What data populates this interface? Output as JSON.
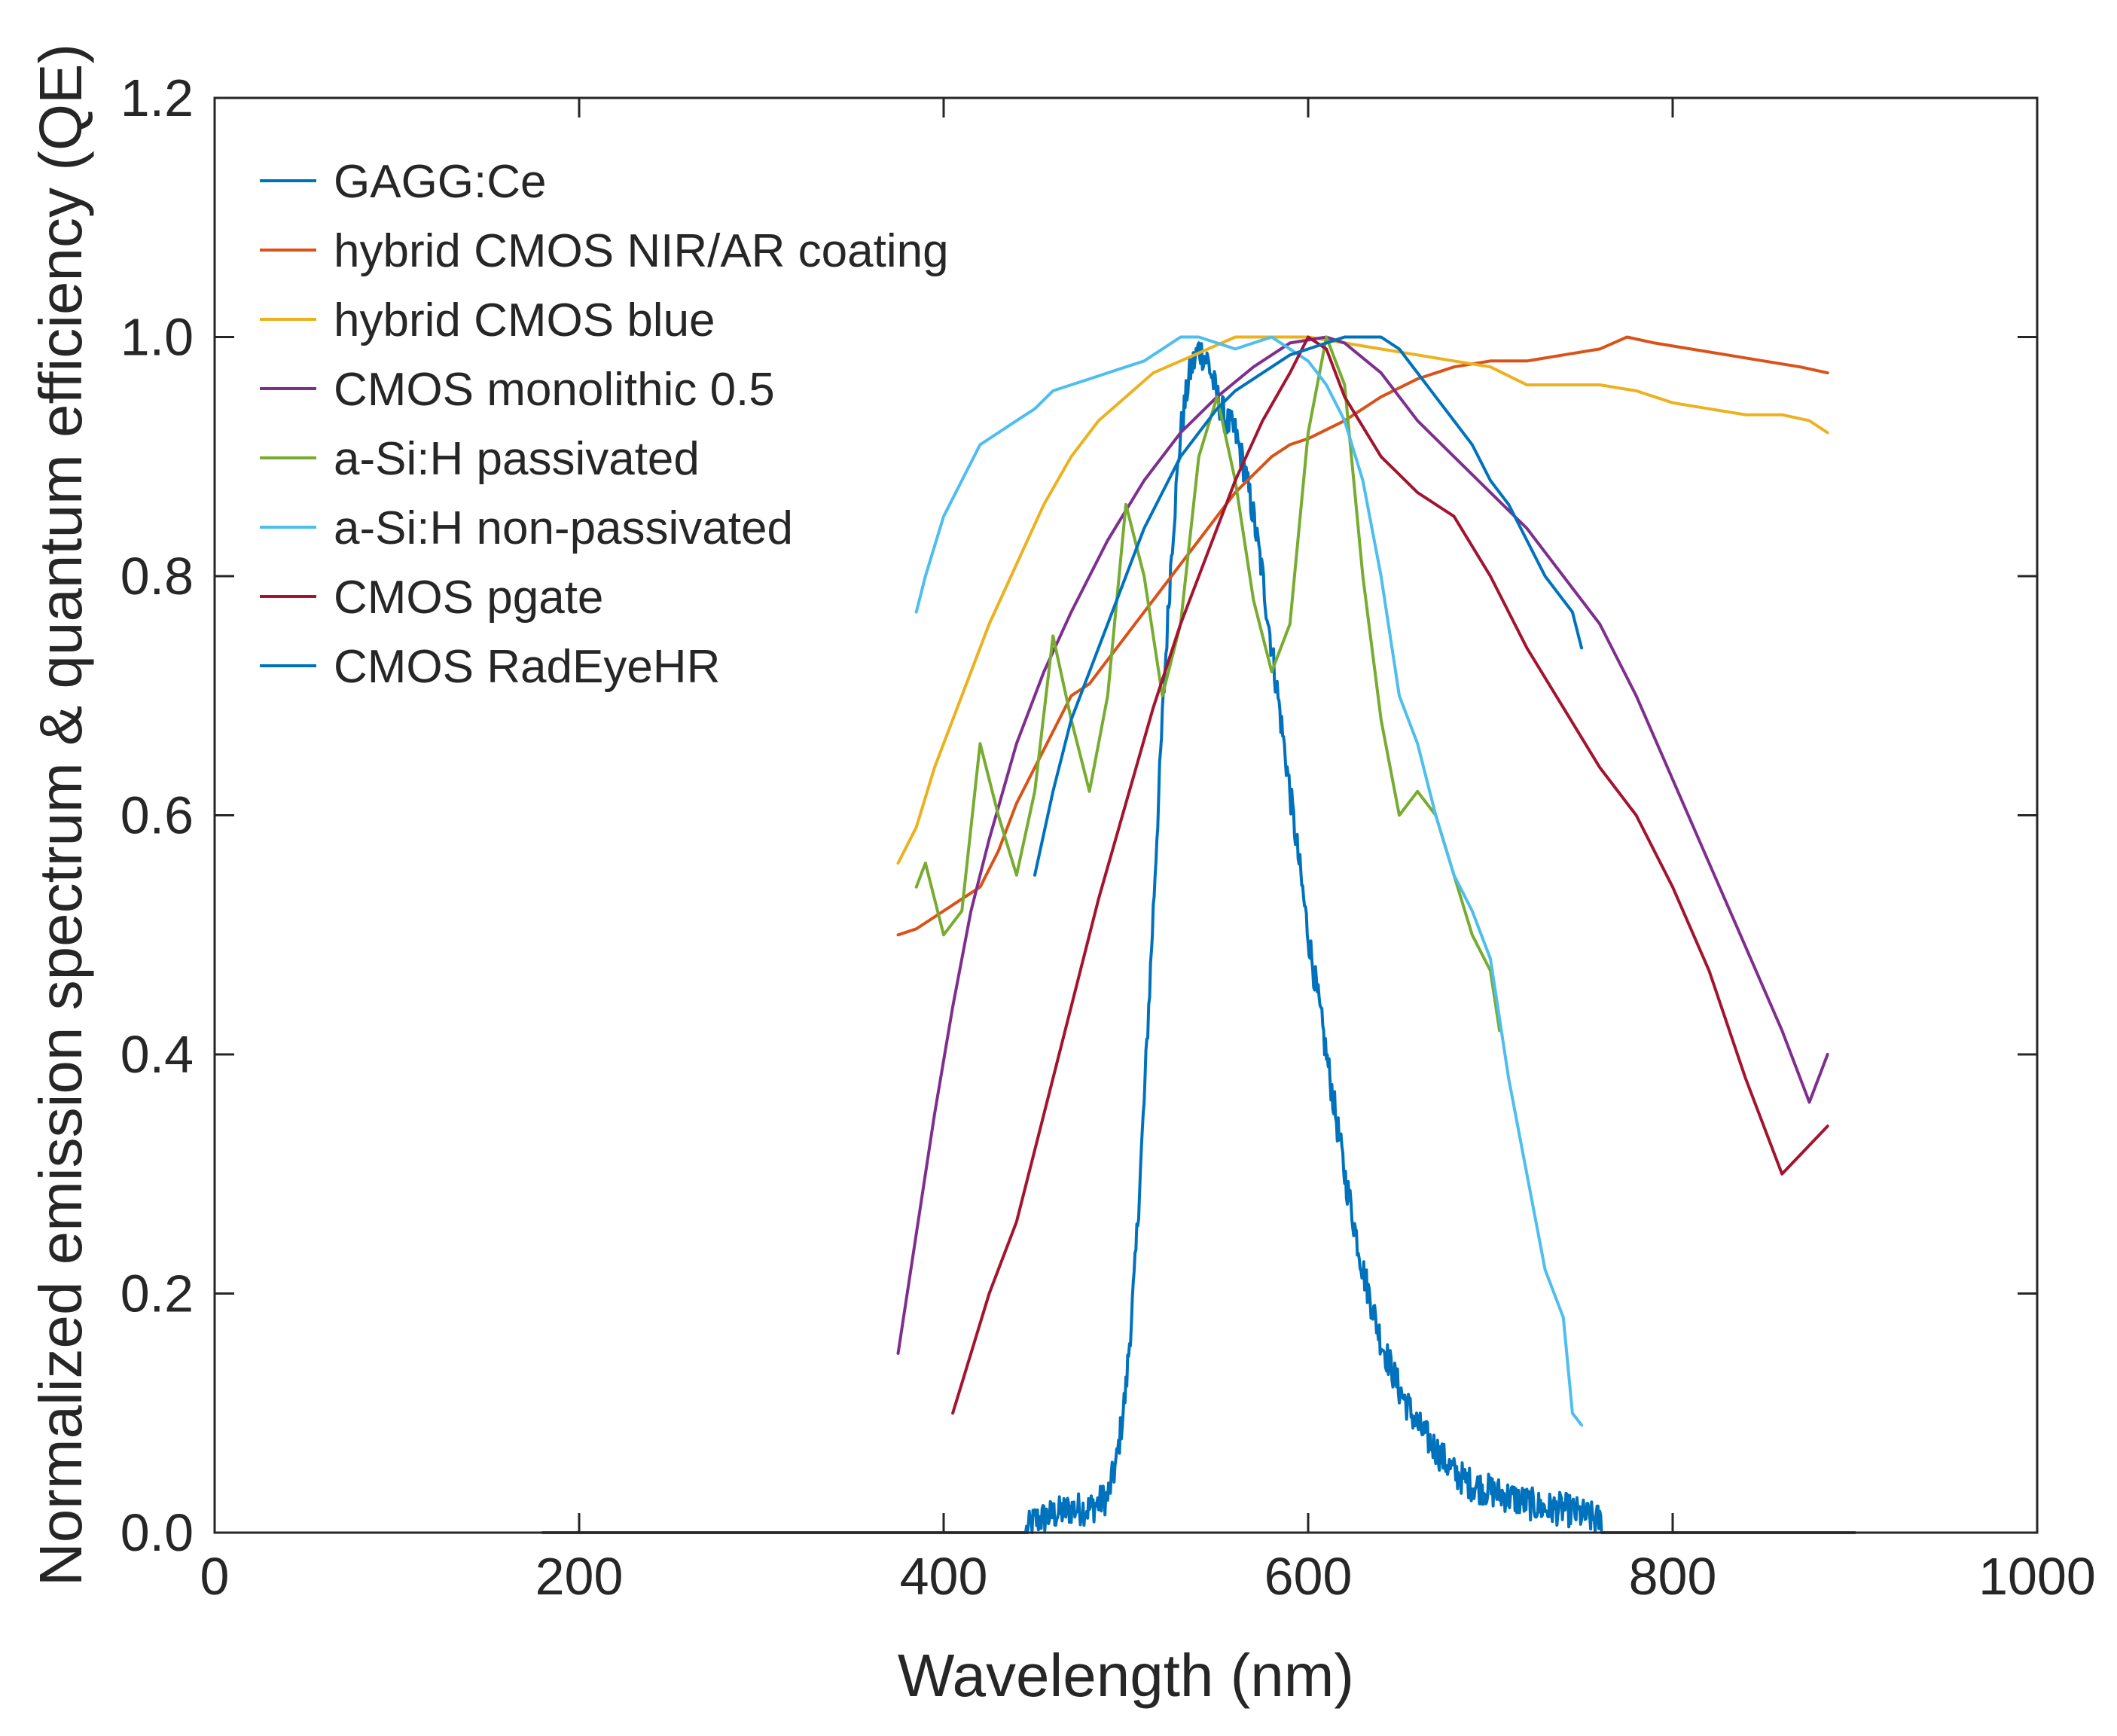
{
  "chart_data": {
    "type": "line",
    "title": "",
    "xlabel": "Wavelength (nm)",
    "ylabel": "Normalized emission spectrum & quantum efficiency (QE)",
    "xlim": [
      0,
      1000
    ],
    "ylim": [
      0,
      1.2
    ],
    "xticks": [
      0,
      200,
      400,
      600,
      800,
      1000
    ],
    "xtick_labels": [
      "0",
      "200",
      "400",
      "600",
      "800",
      "1000"
    ],
    "yticks": [
      0,
      0.2,
      0.4,
      0.6,
      0.8,
      1.0,
      1.2
    ],
    "ytick_labels": [
      "0.0",
      "0.2",
      "0.4",
      "0.6",
      "0.8",
      "1.0",
      "1.2"
    ],
    "grid": false,
    "legend_position": "top-left",
    "series": [
      {
        "name": "GAGG:Ce",
        "color": "#0072BD",
        "noisy": true,
        "x": [
          180,
          445,
          450,
          460,
          470,
          480,
          490,
          495,
          500,
          505,
          510,
          515,
          520,
          525,
          530,
          535,
          540,
          545,
          550,
          555,
          560,
          565,
          570,
          575,
          580,
          585,
          590,
          595,
          600,
          605,
          610,
          615,
          620,
          625,
          630,
          640,
          650,
          660,
          670,
          680,
          690,
          700,
          710,
          720,
          730,
          740,
          750,
          760,
          762,
          900
        ],
        "y": [
          0.0,
          0.0,
          0.01,
          0.015,
          0.02,
          0.02,
          0.03,
          0.06,
          0.12,
          0.22,
          0.36,
          0.52,
          0.68,
          0.82,
          0.92,
          0.97,
          0.99,
          0.98,
          0.95,
          0.93,
          0.92,
          0.89,
          0.85,
          0.8,
          0.74,
          0.68,
          0.62,
          0.56,
          0.5,
          0.45,
          0.4,
          0.35,
          0.3,
          0.26,
          0.22,
          0.16,
          0.12,
          0.09,
          0.07,
          0.05,
          0.04,
          0.035,
          0.03,
          0.025,
          0.02,
          0.02,
          0.015,
          0.01,
          0.0,
          0.0
        ]
      },
      {
        "name": "hybrid CMOS NIR/AR coating",
        "color": "#D95319",
        "x": [
          375,
          385,
          400,
          410,
          420,
          430,
          440,
          450,
          460,
          470,
          480,
          490,
          500,
          510,
          520,
          530,
          540,
          550,
          560,
          570,
          580,
          590,
          600,
          620,
          640,
          660,
          680,
          700,
          720,
          740,
          760,
          775,
          790,
          810,
          830,
          850,
          870,
          885
        ],
        "y": [
          0.5,
          0.505,
          0.52,
          0.53,
          0.54,
          0.57,
          0.61,
          0.64,
          0.67,
          0.7,
          0.71,
          0.73,
          0.75,
          0.77,
          0.79,
          0.81,
          0.83,
          0.85,
          0.87,
          0.885,
          0.9,
          0.91,
          0.915,
          0.93,
          0.95,
          0.965,
          0.975,
          0.98,
          0.98,
          0.985,
          0.99,
          1.0,
          0.995,
          0.99,
          0.985,
          0.98,
          0.975,
          0.97
        ]
      },
      {
        "name": "hybrid CMOS blue",
        "color": "#EDB120",
        "x": [
          375,
          385,
          395,
          405,
          415,
          425,
          440,
          455,
          470,
          485,
          500,
          515,
          530,
          545,
          560,
          580,
          600,
          620,
          640,
          660,
          680,
          700,
          720,
          740,
          760,
          780,
          800,
          820,
          840,
          860,
          875,
          885
        ],
        "y": [
          0.56,
          0.59,
          0.64,
          0.68,
          0.72,
          0.76,
          0.81,
          0.86,
          0.9,
          0.93,
          0.95,
          0.97,
          0.98,
          0.99,
          1.0,
          1.0,
          1.0,
          0.995,
          0.99,
          0.985,
          0.98,
          0.975,
          0.96,
          0.96,
          0.96,
          0.955,
          0.945,
          0.94,
          0.935,
          0.935,
          0.93,
          0.92
        ]
      },
      {
        "name": "CMOS monolithic 0.5",
        "color": "#7E2F8E",
        "x": [
          375,
          385,
          395,
          405,
          415,
          425,
          440,
          455,
          470,
          490,
          510,
          530,
          550,
          570,
          590,
          610,
          620,
          640,
          660,
          680,
          700,
          720,
          740,
          760,
          780,
          800,
          820,
          840,
          860,
          875,
          885
        ],
        "y": [
          0.15,
          0.25,
          0.35,
          0.44,
          0.52,
          0.58,
          0.66,
          0.72,
          0.77,
          0.83,
          0.88,
          0.92,
          0.95,
          0.975,
          0.995,
          1.0,
          0.995,
          0.97,
          0.93,
          0.9,
          0.87,
          0.84,
          0.8,
          0.76,
          0.7,
          0.63,
          0.56,
          0.49,
          0.42,
          0.36,
          0.4
        ]
      },
      {
        "name": "a-Si:H passivated",
        "color": "#77AC30",
        "x": [
          385,
          390,
          395,
          400,
          410,
          420,
          430,
          440,
          450,
          460,
          470,
          480,
          490,
          500,
          510,
          520,
          530,
          540,
          550,
          560,
          570,
          580,
          590,
          600,
          610,
          620,
          630,
          640,
          650,
          660,
          670,
          680,
          690,
          700,
          705
        ],
        "y": [
          0.54,
          0.56,
          0.53,
          0.5,
          0.52,
          0.66,
          0.6,
          0.55,
          0.62,
          0.75,
          0.68,
          0.62,
          0.7,
          0.86,
          0.8,
          0.7,
          0.76,
          0.9,
          0.95,
          0.88,
          0.78,
          0.72,
          0.76,
          0.92,
          1.0,
          0.96,
          0.8,
          0.68,
          0.6,
          0.62,
          0.6,
          0.55,
          0.5,
          0.47,
          0.42
        ]
      },
      {
        "name": "a-Si:H non-passivated",
        "color": "#4DBEEE",
        "x": [
          385,
          390,
          400,
          410,
          420,
          430,
          440,
          450,
          460,
          470,
          480,
          490,
          500,
          510,
          520,
          530,
          540,
          550,
          560,
          570,
          580,
          590,
          600,
          610,
          620,
          630,
          640,
          650,
          660,
          670,
          680,
          690,
          700,
          710,
          720,
          730,
          740,
          745,
          750
        ],
        "y": [
          0.77,
          0.8,
          0.85,
          0.88,
          0.91,
          0.92,
          0.93,
          0.94,
          0.955,
          0.96,
          0.965,
          0.97,
          0.975,
          0.98,
          0.99,
          1.0,
          1.0,
          0.995,
          0.99,
          0.995,
          1.0,
          0.99,
          0.98,
          0.96,
          0.93,
          0.88,
          0.8,
          0.7,
          0.66,
          0.6,
          0.55,
          0.52,
          0.48,
          0.38,
          0.3,
          0.22,
          0.18,
          0.1,
          0.09
        ]
      },
      {
        "name": "CMOS pgate",
        "color": "#A2142F",
        "x": [
          405,
          415,
          425,
          440,
          455,
          470,
          485,
          500,
          515,
          530,
          545,
          560,
          575,
          590,
          600,
          610,
          620,
          640,
          660,
          680,
          700,
          720,
          740,
          760,
          780,
          800,
          820,
          840,
          860,
          885
        ],
        "y": [
          0.1,
          0.15,
          0.2,
          0.26,
          0.35,
          0.44,
          0.53,
          0.61,
          0.69,
          0.76,
          0.82,
          0.88,
          0.93,
          0.97,
          1.0,
          0.99,
          0.95,
          0.9,
          0.87,
          0.85,
          0.8,
          0.74,
          0.69,
          0.64,
          0.6,
          0.54,
          0.47,
          0.38,
          0.3,
          0.34
        ]
      },
      {
        "name": "CMOS RadEyeHR",
        "color": "#0072BD",
        "x": [
          450,
          460,
          470,
          480,
          490,
          500,
          510,
          520,
          530,
          540,
          550,
          560,
          570,
          580,
          590,
          600,
          610,
          620,
          630,
          640,
          650,
          660,
          670,
          680,
          690,
          700,
          710,
          720,
          730,
          740,
          745,
          750
        ],
        "y": [
          0.55,
          0.62,
          0.68,
          0.72,
          0.76,
          0.8,
          0.84,
          0.87,
          0.9,
          0.92,
          0.94,
          0.955,
          0.965,
          0.975,
          0.985,
          0.99,
          0.995,
          1.0,
          1.0,
          1.0,
          0.99,
          0.97,
          0.95,
          0.93,
          0.91,
          0.88,
          0.86,
          0.83,
          0.8,
          0.78,
          0.77,
          0.74
        ]
      }
    ]
  }
}
